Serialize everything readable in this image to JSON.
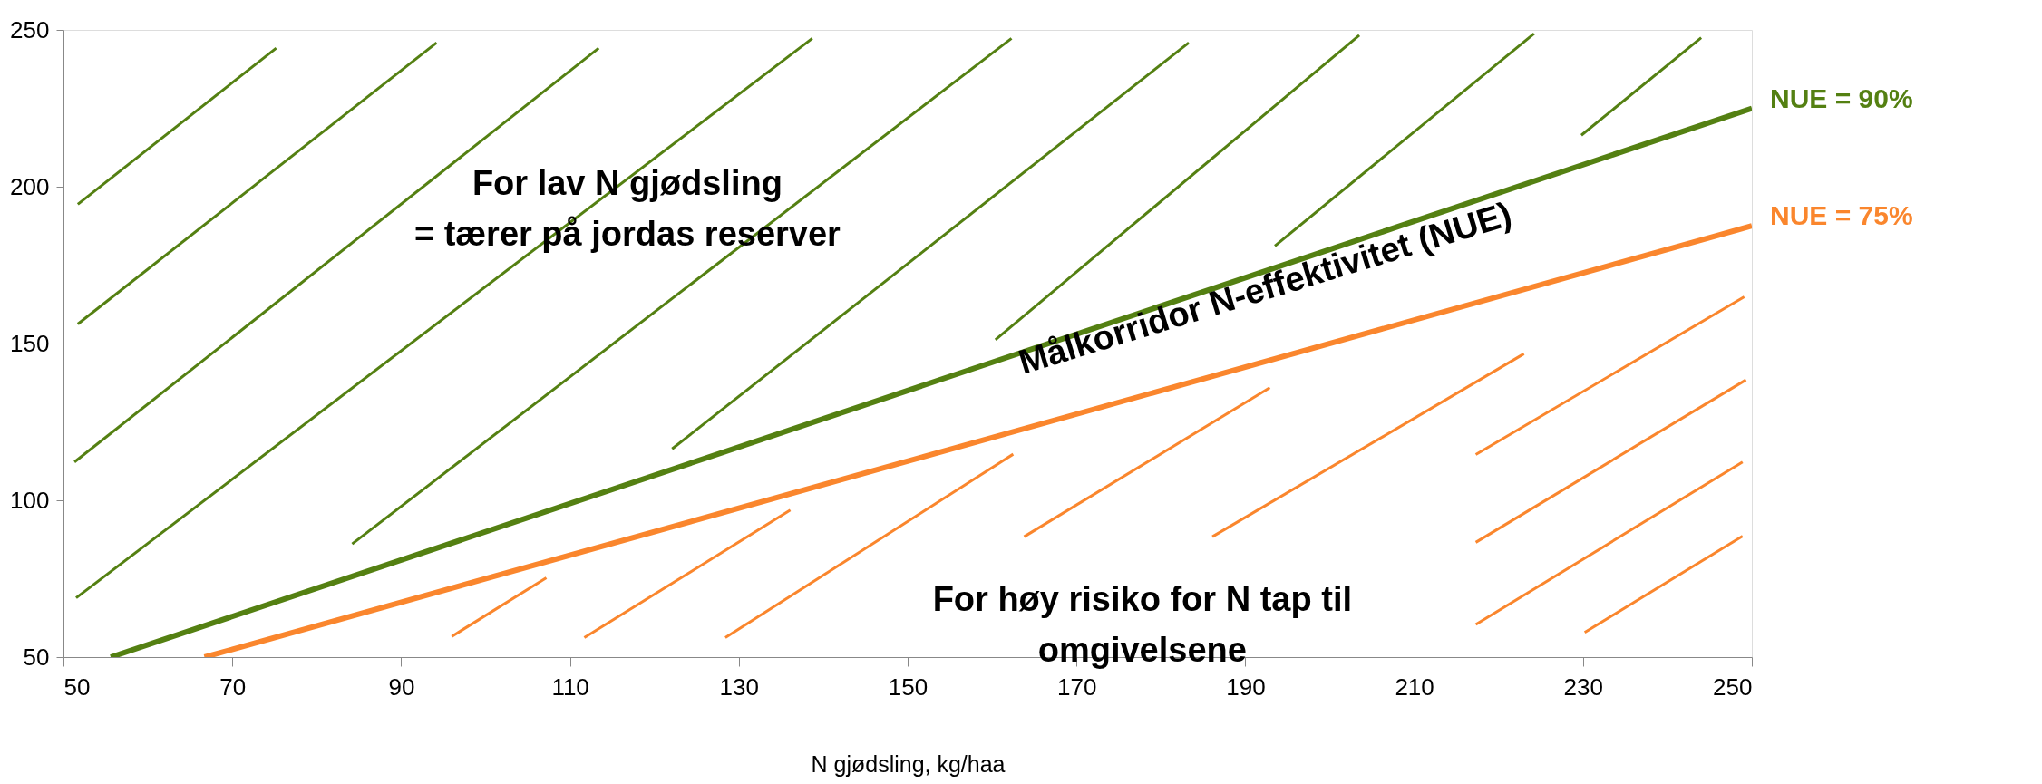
{
  "chart_data": {
    "type": "line",
    "xlabel": "N gjødsling, kg/haa",
    "xlim": [
      50,
      250
    ],
    "ylim": [
      50,
      250
    ],
    "xticks": [
      50,
      70,
      90,
      110,
      130,
      150,
      170,
      190,
      210,
      230,
      250
    ],
    "yticks": [
      50,
      100,
      150,
      200,
      250
    ],
    "grid": false,
    "legend": false,
    "marker": "none",
    "line_style": "solid",
    "series": [
      {
        "name": "NUE = 90%",
        "color": "#548012",
        "x": [
          55.6,
          250
        ],
        "values": [
          50,
          225
        ]
      },
      {
        "name": "NUE = 75%",
        "color": "#fa862d",
        "x": [
          66.7,
          250
        ],
        "values": [
          50,
          187.5
        ]
      },
      {
        "color": "#548012",
        "x": [
          51.7,
          75.2
        ],
        "values": [
          194.4,
          244.2
        ]
      },
      {
        "color": "#548012",
        "x": [
          51.7,
          94.2
        ],
        "values": [
          156.2,
          245.9
        ]
      },
      {
        "color": "#548012",
        "x": [
          51.3,
          113.4
        ],
        "values": [
          112.2,
          244.2
        ]
      },
      {
        "color": "#548012",
        "x": [
          51.5,
          138.7
        ],
        "values": [
          68.9,
          247.3
        ]
      },
      {
        "color": "#548012",
        "x": [
          84.2,
          162.3
        ],
        "values": [
          86.1,
          247.3
        ]
      },
      {
        "color": "#548012",
        "x": [
          122.1,
          183.3
        ],
        "values": [
          116.4,
          245.9
        ]
      },
      {
        "color": "#548012",
        "x": [
          160.4,
          203.5
        ],
        "values": [
          151.2,
          248.3
        ]
      },
      {
        "color": "#548012",
        "x": [
          193.5,
          224.2
        ],
        "values": [
          181.1,
          248.8
        ]
      },
      {
        "color": "#548012",
        "x": [
          229.8,
          244
        ],
        "values": [
          216.4,
          247.5
        ]
      },
      {
        "color": "#fa862d",
        "x": [
          96.0,
          107.2
        ],
        "values": [
          56.6,
          75.3
        ]
      },
      {
        "color": "#fa862d",
        "x": [
          111.7,
          136.1
        ],
        "values": [
          56.2,
          96.9
        ]
      },
      {
        "color": "#fa862d",
        "x": [
          128.4,
          162.5
        ],
        "values": [
          56.2,
          114.7
        ]
      },
      {
        "color": "#fa862d",
        "x": [
          163.8,
          192.9
        ],
        "values": [
          88.4,
          135.9
        ]
      },
      {
        "color": "#fa862d",
        "x": [
          186.1,
          223.0
        ],
        "values": [
          88.4,
          146.7
        ]
      },
      {
        "color": "#fa862d",
        "x": [
          217.3,
          249.1
        ],
        "values": [
          114.6,
          164.9
        ]
      },
      {
        "color": "#fa862d",
        "x": [
          217.3,
          249.3
        ],
        "values": [
          86.6,
          138.4
        ]
      },
      {
        "color": "#fa862d",
        "x": [
          217.3,
          248.9
        ],
        "values": [
          60.4,
          112.2
        ]
      },
      {
        "color": "#fa862d",
        "x": [
          230.2,
          248.9
        ],
        "values": [
          57.9,
          88.6
        ]
      }
    ],
    "annotations": [
      "For lav N gjødsling\n= tærer på jordas reserver",
      "Målkorridor N-effektivitet (NUE)",
      "For høy risiko for N tap til\nomgivelsene"
    ]
  }
}
